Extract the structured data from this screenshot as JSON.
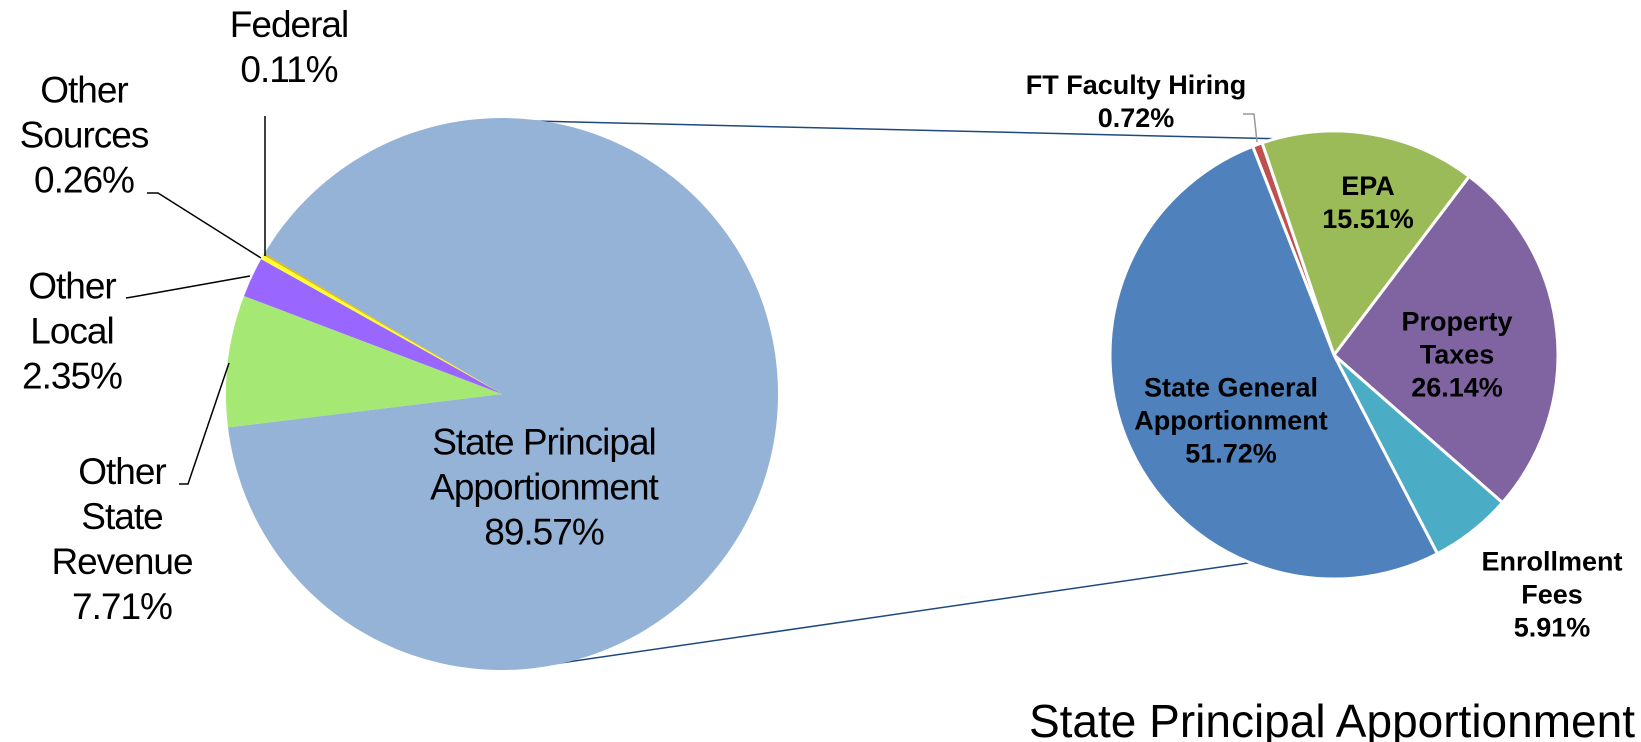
{
  "chart_data": [
    {
      "type": "pie",
      "categories": [
        "State Principal Apportionment",
        "Other State Revenue",
        "Other Local",
        "Other Sources",
        "Federal"
      ],
      "values": [
        89.57,
        7.71,
        2.35,
        0.26,
        0.11
      ],
      "value_labels": [
        "89.57%",
        "7.71%",
        "2.35%",
        "0.26%",
        "0.11%"
      ],
      "colors": [
        "#95b3d7",
        "#a6e874",
        "#9966ff",
        "#ffff33",
        "#e6b800"
      ]
    },
    {
      "type": "pie",
      "title": "State Principal Apportionment",
      "categories": [
        "FT Faculty Hiring",
        "EPA",
        "Property Taxes",
        "Enrollment Fees",
        "State General Apportionment"
      ],
      "values": [
        0.72,
        15.51,
        26.14,
        5.91,
        51.72
      ],
      "value_labels": [
        "0.72%",
        "15.51%",
        "26.14%",
        "5.91%",
        "51.72%"
      ],
      "colors": [
        "#c0504d",
        "#9bbb59",
        "#8064a2",
        "#4bacc6",
        "#4f81bd"
      ]
    }
  ]
}
